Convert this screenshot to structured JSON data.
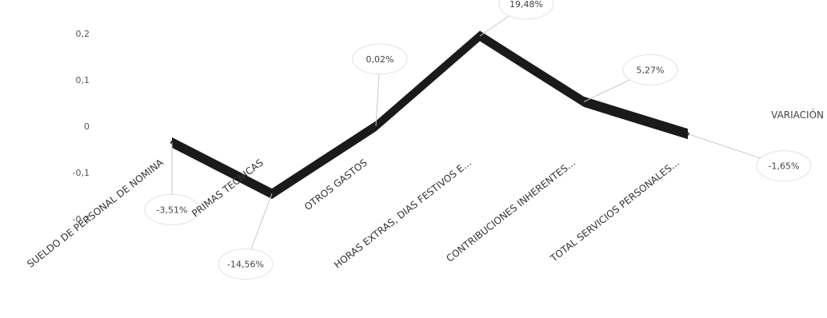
{
  "chart_data": {
    "type": "line",
    "categories": [
      "SUELDO DE PERSONAL DE NOMINA",
      "PRIMAS TECNICAS",
      "OTROS GASTOS",
      "HORAS EXTRAS, DIAS FESTIVOS E...",
      "CONTRIBUCIONES INHERENTES...",
      "TOTAL SERVICIOS PERSONALES..."
    ],
    "series": [
      {
        "name": "VARIACIÓN",
        "values": [
          -0.0351,
          -0.1456,
          0.0002,
          0.1948,
          0.0527,
          -0.0165
        ],
        "data_labels": [
          "-3,51%",
          "-14,56%",
          "0,02%",
          "19,48%",
          "5,27%",
          "-1,65%"
        ],
        "color": "#1a1a1a"
      }
    ],
    "y_ticks": [
      "0,2",
      "0,1",
      "0",
      "-0,1",
      "-0,2"
    ],
    "ylim": [
      -0.2,
      0.2
    ],
    "xlabel": "",
    "ylabel": "",
    "title": "",
    "legend_position": "right",
    "grid": false
  }
}
